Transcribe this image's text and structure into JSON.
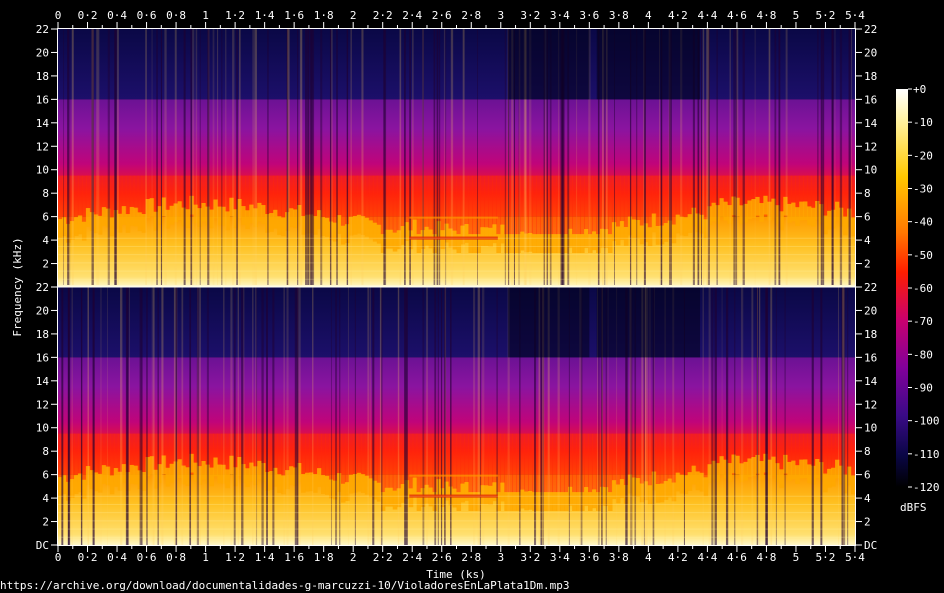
{
  "source_url": "https://archive.org/download/documentalidades-g-marcuzzi-10/VioladoresEnLaPlata1Dm.mp3",
  "chart_data": {
    "type": "heatmap",
    "title": "",
    "xlabel": "Time (ks)",
    "ylabel": "Frequency (kHz)",
    "colorbar_label": "dBFS",
    "xlim": [
      0,
      5.4
    ],
    "ylim": [
      0,
      22
    ],
    "x_ticks": [
      "0",
      "0·2",
      "0·4",
      "0·6",
      "0·8",
      "1",
      "1·2",
      "1·4",
      "1·6",
      "1·8",
      "2",
      "2·2",
      "2·4",
      "2·6",
      "2·8",
      "3",
      "3·2",
      "3·4",
      "3·6",
      "3·8",
      "4",
      "4·2",
      "4·4",
      "4·6",
      "4·8",
      "5",
      "5·2",
      "5·4"
    ],
    "y_ticks": [
      "2",
      "4",
      "6",
      "8",
      "10",
      "12",
      "14",
      "16",
      "18",
      "20",
      "22"
    ],
    "y_ticks_bottom_panel": [
      "DC",
      "2",
      "4",
      "6",
      "8",
      "10",
      "12",
      "14",
      "16",
      "18",
      "20",
      "22"
    ],
    "colorbar_ticks": [
      "+0",
      "-10",
      "-20",
      "-30",
      "-40",
      "-50",
      "-60",
      "-70",
      "-80",
      "-90",
      "-100",
      "-110",
      "-120"
    ],
    "colorbar_range": [
      -120,
      0
    ],
    "lowpass_cutoff_khz": 16,
    "channels": 2,
    "colors": {
      "background": "#000000",
      "loudest": "#ffffe8",
      "loud": "#ffd21e",
      "mid_loud": "#ff8a00",
      "mid": "#ff1e00",
      "quiet": "#b0007a",
      "quieter": "#6a0a90",
      "quietest": "#0a0846"
    }
  }
}
